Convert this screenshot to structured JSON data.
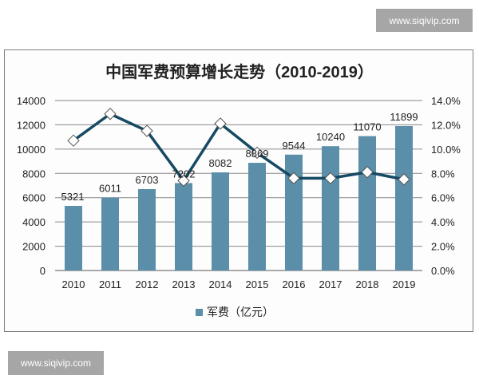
{
  "watermark_text": "www.siqivip.com",
  "chart_data": {
    "type": "bar+line",
    "title": "中国军费预算增长走势（2010-2019）",
    "categories": [
      "2010",
      "2011",
      "2012",
      "2013",
      "2014",
      "2015",
      "2016",
      "2017",
      "2018",
      "2019"
    ],
    "series": [
      {
        "name": "军费（亿元）",
        "type": "bar",
        "axis": "left",
        "color": "#5b8ea8",
        "values": [
          5321,
          6011,
          6703,
          7202,
          8082,
          8869,
          9544,
          10240,
          11070,
          11899
        ]
      },
      {
        "type": "line",
        "axis": "right",
        "color": "#164a64",
        "unit": "%",
        "values": [
          10.7,
          12.9,
          11.5,
          7.4,
          12.1,
          9.7,
          7.6,
          7.6,
          8.1,
          7.5
        ]
      }
    ],
    "y_left": {
      "min": 0,
      "max": 14000,
      "ticks": [
        "0",
        "2000",
        "4000",
        "6000",
        "8000",
        "10000",
        "12000",
        "14000"
      ]
    },
    "y_right": {
      "min": 0,
      "max": 14,
      "ticks": [
        "0.0%",
        "2.0%",
        "4.0%",
        "6.0%",
        "8.0%",
        "10.0%",
        "12.0%",
        "14.0%"
      ]
    },
    "grid": true,
    "legend": "bottom"
  }
}
